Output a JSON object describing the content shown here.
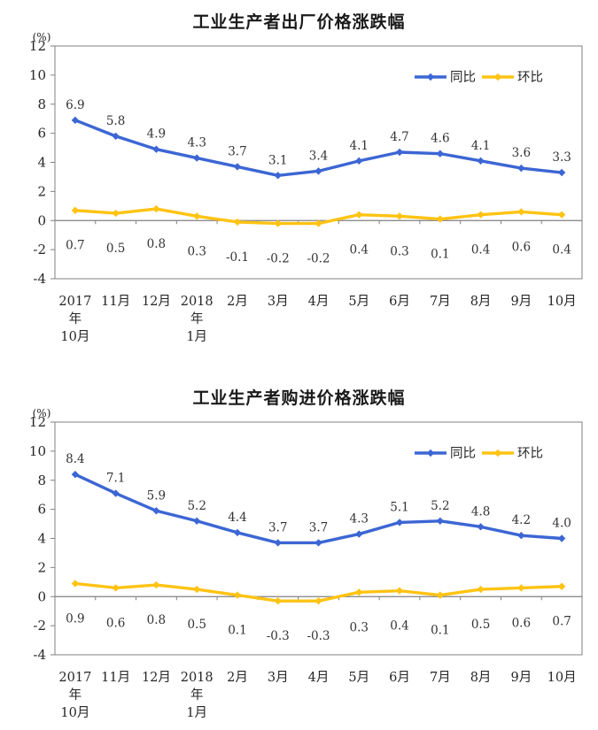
{
  "colors": {
    "background": "#ffffff",
    "axis": "#808080",
    "tick_text": "#262626",
    "data_label_text": "#333333",
    "yoy_blue": "#3c66d4",
    "mom_gold": "#ffc313"
  },
  "chart_data": [
    {
      "type": "line",
      "title": "工业生产者出厂价格涨跌幅",
      "ylabel": "(%)",
      "ylim": [
        -4,
        12
      ],
      "ytick_step": 2,
      "grid": false,
      "legend_position": "inside-top-right",
      "categories": [
        "2017年10月",
        "11月",
        "12月",
        "2018年1月",
        "2月",
        "3月",
        "4月",
        "5月",
        "6月",
        "7月",
        "8月",
        "9月",
        "10月"
      ],
      "category_lines": [
        [
          "2017",
          "年",
          "10月"
        ],
        [
          "11月"
        ],
        [
          "12月"
        ],
        [
          "2018",
          "年",
          "1月"
        ],
        [
          "2月"
        ],
        [
          "3月"
        ],
        [
          "4月"
        ],
        [
          "5月"
        ],
        [
          "6月"
        ],
        [
          "7月"
        ],
        [
          "8月"
        ],
        [
          "9月"
        ],
        [
          "10月"
        ]
      ],
      "series": [
        {
          "name": "同比",
          "color": "#3c66d4",
          "label_position": "above",
          "values": [
            6.9,
            5.8,
            4.9,
            4.3,
            3.7,
            3.1,
            3.4,
            4.1,
            4.7,
            4.6,
            4.1,
            3.6,
            3.3
          ]
        },
        {
          "name": "环比",
          "color": "#ffc313",
          "label_position": "below",
          "values": [
            0.7,
            0.5,
            0.8,
            0.3,
            -0.1,
            -0.2,
            -0.2,
            0.4,
            0.3,
            0.1,
            0.4,
            0.6,
            0.4
          ]
        }
      ]
    },
    {
      "type": "line",
      "title": "工业生产者购进价格涨跌幅",
      "ylabel": "(%)",
      "ylim": [
        -4,
        12
      ],
      "ytick_step": 2,
      "grid": false,
      "legend_position": "inside-top-right",
      "categories": [
        "2017年10月",
        "11月",
        "12月",
        "2018年1月",
        "2月",
        "3月",
        "4月",
        "5月",
        "6月",
        "7月",
        "8月",
        "9月",
        "10月"
      ],
      "category_lines": [
        [
          "2017",
          "年",
          "10月"
        ],
        [
          "11月"
        ],
        [
          "12月"
        ],
        [
          "2018",
          "年",
          "1月"
        ],
        [
          "2月"
        ],
        [
          "3月"
        ],
        [
          "4月"
        ],
        [
          "5月"
        ],
        [
          "6月"
        ],
        [
          "7月"
        ],
        [
          "8月"
        ],
        [
          "9月"
        ],
        [
          "10月"
        ]
      ],
      "series": [
        {
          "name": "同比",
          "color": "#3c66d4",
          "label_position": "above",
          "values": [
            8.4,
            7.1,
            5.9,
            5.2,
            4.4,
            3.7,
            3.7,
            4.3,
            5.1,
            5.2,
            4.8,
            4.2,
            4.0
          ]
        },
        {
          "name": "环比",
          "color": "#ffc313",
          "label_position": "below",
          "values": [
            0.9,
            0.6,
            0.8,
            0.5,
            0.1,
            -0.3,
            -0.3,
            0.3,
            0.4,
            0.1,
            0.5,
            0.6,
            0.7
          ]
        }
      ]
    }
  ]
}
